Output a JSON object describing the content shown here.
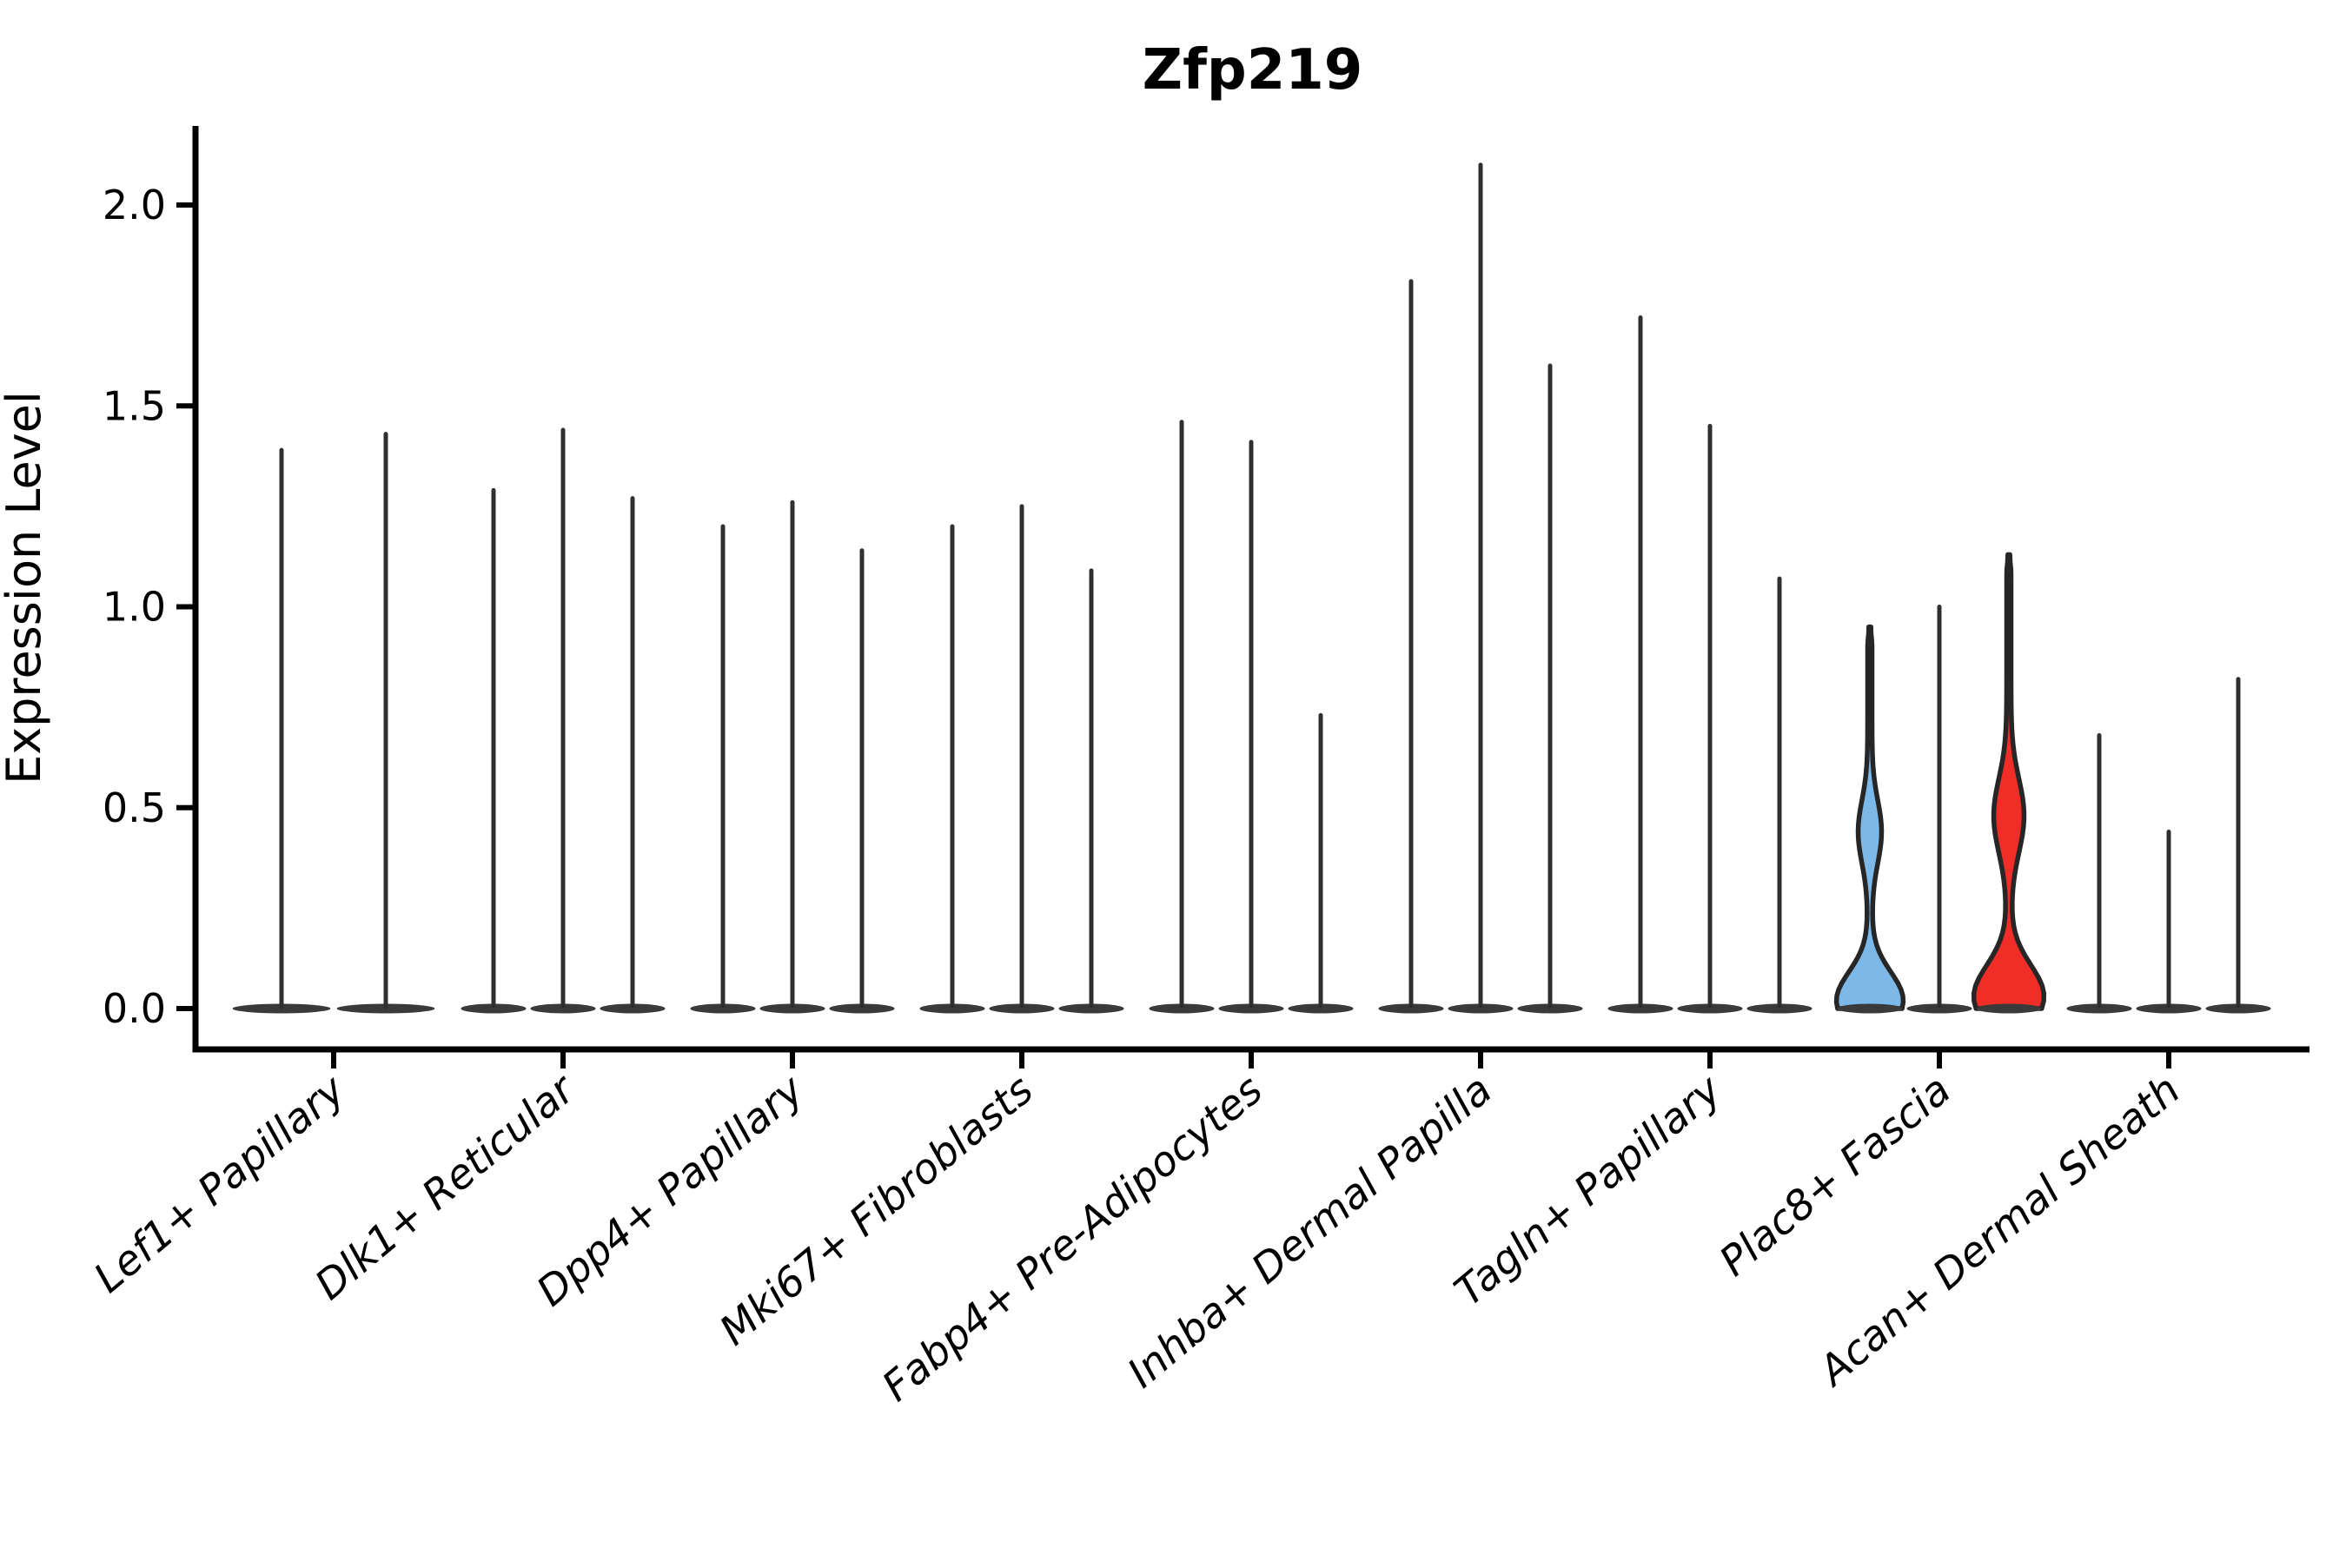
{
  "title": "Zfp219",
  "y_axis": {
    "label": "Expression Level",
    "tick_labels": [
      "0.0",
      "0.5",
      "1.0",
      "1.5",
      "2.0"
    ],
    "tick_values": [
      0.0,
      0.5,
      1.0,
      1.5,
      2.0
    ]
  },
  "colors": {
    "background": "#ffffff",
    "axis": "#000000",
    "stem": "#303030",
    "violin_outline": "#262626",
    "baseline_blob": "#3a3a3a",
    "blue_fill": "#7DB9E8",
    "red_fill": "#F02D26"
  },
  "chart_data": {
    "type": "violin",
    "title": "Zfp219",
    "xlabel": "",
    "ylabel": "Expression Level",
    "ylim": [
      0,
      2.2
    ],
    "yticks": [
      0.0,
      0.5,
      1.0,
      1.5,
      2.0
    ],
    "grid": false,
    "legend": "none",
    "x_tick_rotation_deg": -40,
    "groups": [
      {
        "label": "Lef1+ Papillary",
        "violins": [
          {
            "max": 1.39
          },
          {
            "max": 1.43
          }
        ]
      },
      {
        "label": "Dlk1+ Reticular",
        "violins": [
          {
            "max": 1.29
          },
          {
            "max": 1.44
          },
          {
            "max": 1.27
          }
        ]
      },
      {
        "label": "Dpp4+ Papillary",
        "violins": [
          {
            "max": 1.2
          },
          {
            "max": 1.26
          },
          {
            "max": 1.14
          }
        ]
      },
      {
        "label": "Mki67+ Fibroblasts",
        "violins": [
          {
            "max": 1.2
          },
          {
            "max": 1.25
          },
          {
            "max": 1.09
          }
        ]
      },
      {
        "label": "Fabp4+ Pre-Adipocytes",
        "violins": [
          {
            "max": 1.46
          },
          {
            "max": 1.41
          },
          {
            "max": 0.73
          }
        ]
      },
      {
        "label": "Inhba+ Dermal Papilla",
        "violins": [
          {
            "max": 1.81
          },
          {
            "max": 2.1
          },
          {
            "max": 1.6
          }
        ]
      },
      {
        "label": "Tagln+ Papillary",
        "violins": [
          {
            "max": 1.72
          },
          {
            "max": 1.45
          },
          {
            "max": 1.07
          }
        ]
      },
      {
        "label": "Plac8+ Fascia",
        "violins": [
          {
            "max": 0.95,
            "fill": "blue_fill",
            "shape": {
              "base_amp": 36,
              "base_center": 0.02,
              "base_sigma": 0.1,
              "mid_amp": 11,
              "mid_center": 0.44,
              "mid_sigma": 0.11
            }
          },
          {
            "max": 1.0
          },
          {
            "max": 1.13,
            "fill": "red_fill",
            "shape": {
              "base_amp": 38,
              "base_center": 0.03,
              "base_sigma": 0.11,
              "mid_amp": 15,
              "mid_center": 0.48,
              "mid_sigma": 0.13
            }
          }
        ]
      },
      {
        "label": "Acan+ Dermal Sheath",
        "violins": [
          {
            "max": 0.68
          },
          {
            "max": 0.44
          },
          {
            "max": 0.82
          }
        ]
      }
    ]
  }
}
